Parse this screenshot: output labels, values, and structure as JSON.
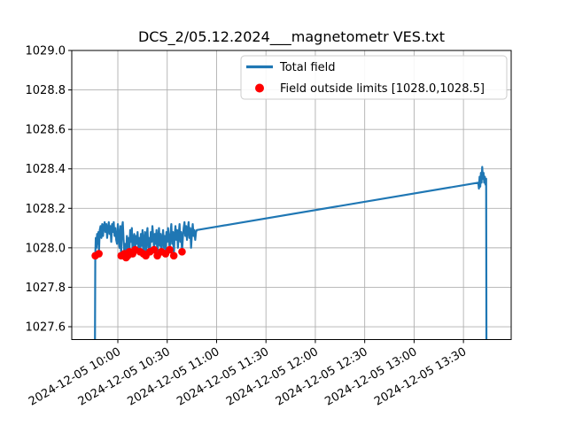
{
  "figure": {
    "background": "#ffffff"
  },
  "chart_data": {
    "type": "line",
    "title": "DCS_2/05.12.2024___magnetometr VES.txt",
    "xlabel": "",
    "ylabel": "",
    "x_unit": "minutes since 2024-12-05 10:00",
    "xlim": [
      -28,
      239
    ],
    "ylim": [
      1027.535,
      1029.0
    ],
    "grid": true,
    "grid_color": "#b0b0b0",
    "yticks": [
      {
        "v": 1027.6,
        "label": "1027.6"
      },
      {
        "v": 1027.8,
        "label": "1027.8"
      },
      {
        "v": 1028.0,
        "label": "1028.0"
      },
      {
        "v": 1028.2,
        "label": "1028.2"
      },
      {
        "v": 1028.4,
        "label": "1028.4"
      },
      {
        "v": 1028.6,
        "label": "1028.6"
      },
      {
        "v": 1028.8,
        "label": "1028.8"
      },
      {
        "v": 1029.0,
        "label": "1029.0"
      }
    ],
    "xticks": [
      {
        "t": 0,
        "label": "2024-12-05 10:00"
      },
      {
        "t": 30,
        "label": "2024-12-05 10:30"
      },
      {
        "t": 60,
        "label": "2024-12-05 11:00"
      },
      {
        "t": 90,
        "label": "2024-12-05 11:30"
      },
      {
        "t": 120,
        "label": "2024-12-05 12:00"
      },
      {
        "t": 150,
        "label": "2024-12-05 12:30"
      },
      {
        "t": 180,
        "label": "2024-12-05 13:00"
      },
      {
        "t": 210,
        "label": "2024-12-05 13:30"
      }
    ],
    "legend": {
      "position": "upper right",
      "frame": true,
      "frame_color": "#cccccc"
    },
    "series": [
      {
        "name": "Total field",
        "style": "line",
        "color": "#1f77b4",
        "points": [
          [
            -14,
            1027.3
          ],
          [
            -13.7,
            1027.96
          ],
          [
            -13.4,
            1028.05
          ],
          [
            -13,
            1028.0
          ],
          [
            -12.6,
            1028.07
          ],
          [
            -12.2,
            1028.02
          ],
          [
            -11.8,
            1028.08
          ],
          [
            -11.5,
            1027.97
          ],
          [
            -11,
            1028.09
          ],
          [
            -10.5,
            1028.11
          ],
          [
            -10,
            1028.05
          ],
          [
            -9.5,
            1028.12
          ],
          [
            -9,
            1028.06
          ],
          [
            -8.5,
            1028.11
          ],
          [
            -8,
            1028.13
          ],
          [
            -7.5,
            1028.08
          ],
          [
            -7,
            1028.12
          ],
          [
            -6.5,
            1028.05
          ],
          [
            -6,
            1028.1
          ],
          [
            -5.5,
            1028.13
          ],
          [
            -5,
            1028.07
          ],
          [
            -4.5,
            1028.11
          ],
          [
            -4,
            1028.03
          ],
          [
            -3.5,
            1028.12
          ],
          [
            -3,
            1028.08
          ],
          [
            -2.5,
            1028.13
          ],
          [
            -2,
            1028.06
          ],
          [
            -1.5,
            1028.1
          ],
          [
            -1,
            1028.04
          ],
          [
            -0.5,
            1028.02
          ],
          [
            0,
            1028.12
          ],
          [
            0.5,
            1028.05
          ],
          [
            1,
            1028.0
          ],
          [
            1.5,
            1028.11
          ],
          [
            2,
            1027.96
          ],
          [
            2.5,
            1028.1
          ],
          [
            3,
            1028.13
          ],
          [
            3.5,
            1028.04
          ],
          [
            4,
            1027.97
          ],
          [
            4.5,
            1028.02
          ],
          [
            5,
            1027.95
          ],
          [
            5.5,
            1028.06
          ],
          [
            6,
            1027.96
          ],
          [
            6.5,
            1028.05
          ],
          [
            7,
            1027.98
          ],
          [
            7.5,
            1028.09
          ],
          [
            8,
            1028.03
          ],
          [
            8.5,
            1028.1
          ],
          [
            9,
            1027.97
          ],
          [
            9.5,
            1028.05
          ],
          [
            10,
            1028.07
          ],
          [
            10.5,
            1027.99
          ],
          [
            11,
            1028.06
          ],
          [
            11.5,
            1028.02
          ],
          [
            12,
            1028.08
          ],
          [
            12.5,
            1028.0
          ],
          [
            13,
            1028.05
          ],
          [
            13.5,
            1027.98
          ],
          [
            14,
            1028.07
          ],
          [
            14.5,
            1028.01
          ],
          [
            15,
            1028.09
          ],
          [
            15.5,
            1027.97
          ],
          [
            16,
            1028.04
          ],
          [
            16.5,
            1028.08
          ],
          [
            17,
            1027.96
          ],
          [
            17.5,
            1028.06
          ],
          [
            18,
            1028.1
          ],
          [
            18.5,
            1028.0
          ],
          [
            19,
            1028.05
          ],
          [
            19.5,
            1027.98
          ],
          [
            20,
            1028.08
          ],
          [
            20.5,
            1028.03
          ],
          [
            21,
            1028.11
          ],
          [
            21.5,
            1028.06
          ],
          [
            22,
            1027.99
          ],
          [
            22.5,
            1028.07
          ],
          [
            23,
            1028.02
          ],
          [
            23.5,
            1028.09
          ],
          [
            24,
            1027.96
          ],
          [
            24.5,
            1028.05
          ],
          [
            25,
            1028.1
          ],
          [
            25.5,
            1028.01
          ],
          [
            26,
            1028.07
          ],
          [
            26.5,
            1027.98
          ],
          [
            27,
            1028.04
          ],
          [
            27.5,
            1028.09
          ],
          [
            28,
            1028.0
          ],
          [
            28.5,
            1028.06
          ],
          [
            29,
            1027.97
          ],
          [
            29.5,
            1028.08
          ],
          [
            30,
            1028.03
          ],
          [
            30.5,
            1028.1
          ],
          [
            31,
            1028.05
          ],
          [
            31.5,
            1027.99
          ],
          [
            32,
            1028.07
          ],
          [
            32.5,
            1028.12
          ],
          [
            33,
            1028.02
          ],
          [
            33.5,
            1028.08
          ],
          [
            34,
            1027.96
          ],
          [
            34.5,
            1028.06
          ],
          [
            35,
            1028.11
          ],
          [
            35.5,
            1028.04
          ],
          [
            36,
            1028.09
          ],
          [
            36.5,
            1028.0
          ],
          [
            37,
            1028.07
          ],
          [
            37.5,
            1028.12
          ],
          [
            38,
            1028.03
          ],
          [
            38.5,
            1028.08
          ],
          [
            39,
            1027.98
          ],
          [
            39.5,
            1028.05
          ],
          [
            40,
            1028.1
          ],
          [
            40.5,
            1028.13
          ],
          [
            41,
            1028.06
          ],
          [
            41.5,
            1028.11
          ],
          [
            42,
            1028.04
          ],
          [
            42.5,
            1028.09
          ],
          [
            43,
            1028.13
          ],
          [
            43.5,
            1028.05
          ],
          [
            44,
            1028.1
          ],
          [
            44.5,
            1028.0
          ],
          [
            45,
            1028.07
          ],
          [
            45.5,
            1028.12
          ],
          [
            46,
            1028.06
          ],
          [
            46.5,
            1028.09
          ],
          [
            47,
            1028.04
          ],
          [
            47.5,
            1028.08
          ],
          [
            48,
            1028.09
          ],
          [
            219,
            1028.33
          ],
          [
            219.4,
            1028.3
          ],
          [
            219.8,
            1028.36
          ],
          [
            220.2,
            1028.31
          ],
          [
            220.6,
            1028.38
          ],
          [
            221,
            1028.33
          ],
          [
            221.4,
            1028.41
          ],
          [
            221.8,
            1028.35
          ],
          [
            222.2,
            1028.38
          ],
          [
            222.6,
            1028.33
          ],
          [
            223,
            1028.36
          ],
          [
            223.4,
            1028.32
          ],
          [
            223.8,
            1028.35
          ],
          [
            224,
            1027.3
          ]
        ]
      },
      {
        "name": "Field outside limits [1028.0,1028.5]",
        "style": "scatter",
        "color": "#ff0000",
        "points": [
          [
            -13.7,
            1027.96
          ],
          [
            -11.5,
            1027.97
          ],
          [
            2,
            1027.96
          ],
          [
            4,
            1027.97
          ],
          [
            5,
            1027.95
          ],
          [
            6,
            1027.96
          ],
          [
            7,
            1027.98
          ],
          [
            9,
            1027.97
          ],
          [
            10.5,
            1027.99
          ],
          [
            13.5,
            1027.98
          ],
          [
            15.5,
            1027.97
          ],
          [
            17,
            1027.96
          ],
          [
            19.5,
            1027.98
          ],
          [
            22,
            1027.99
          ],
          [
            24,
            1027.96
          ],
          [
            26.5,
            1027.98
          ],
          [
            29,
            1027.97
          ],
          [
            31.5,
            1027.99
          ],
          [
            34,
            1027.96
          ],
          [
            39,
            1027.98
          ]
        ]
      }
    ]
  }
}
